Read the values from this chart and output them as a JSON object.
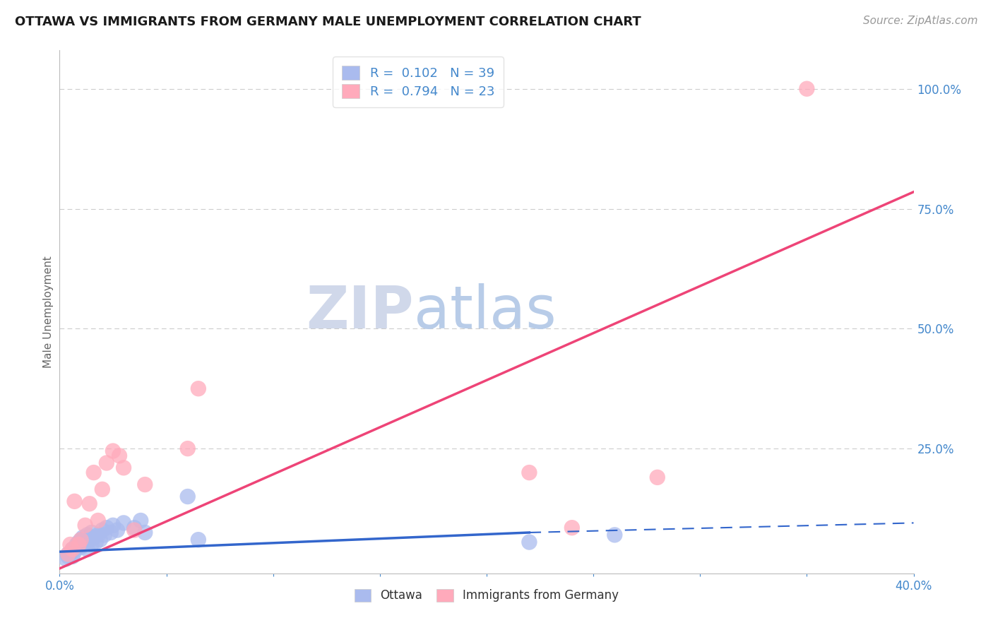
{
  "title": "OTTAWA VS IMMIGRANTS FROM GERMANY MALE UNEMPLOYMENT CORRELATION CHART",
  "source": "Source: ZipAtlas.com",
  "ylabel": "Male Unemployment",
  "xlim": [
    0.0,
    0.4
  ],
  "ylim": [
    -0.01,
    1.08
  ],
  "xticks": [
    0.0,
    0.05,
    0.1,
    0.15,
    0.2,
    0.25,
    0.3,
    0.35,
    0.4
  ],
  "ytick_positions": [
    0.25,
    0.5,
    0.75,
    1.0
  ],
  "ytick_labels": [
    "25.0%",
    "50.0%",
    "75.0%",
    "100.0%"
  ],
  "xtick_labels": [
    "0.0%",
    "",
    "",
    "",
    "",
    "",
    "",
    "",
    "40.0%"
  ],
  "grid_yticks": [
    0.25,
    0.5,
    0.75,
    1.0
  ],
  "ottawa_color": "#aabbee",
  "immigrants_color": "#ffaabb",
  "trendline_ottawa_color": "#3366cc",
  "trendline_immigrants_color": "#ee4477",
  "legend_R_ottawa": "R =  0.102",
  "legend_N_ottawa": "N = 39",
  "legend_R_immigrants": "R =  0.794",
  "legend_N_immigrants": "N = 23",
  "background_color": "#ffffff",
  "title_fontsize": 13,
  "axis_label_color": "#4488cc",
  "ottawa_scatter_x": [
    0.003,
    0.004,
    0.005,
    0.006,
    0.007,
    0.007,
    0.008,
    0.008,
    0.009,
    0.01,
    0.01,
    0.011,
    0.011,
    0.012,
    0.013,
    0.013,
    0.014,
    0.015,
    0.015,
    0.016,
    0.017,
    0.018,
    0.019,
    0.02,
    0.021,
    0.022,
    0.024,
    0.025,
    0.027,
    0.03,
    0.035,
    0.038,
    0.04,
    0.06,
    0.065,
    0.22,
    0.26,
    0.004,
    0.006
  ],
  "ottawa_scatter_y": [
    0.02,
    0.025,
    0.03,
    0.025,
    0.04,
    0.035,
    0.045,
    0.05,
    0.055,
    0.045,
    0.06,
    0.05,
    0.065,
    0.055,
    0.04,
    0.07,
    0.06,
    0.05,
    0.075,
    0.065,
    0.055,
    0.07,
    0.06,
    0.08,
    0.07,
    0.085,
    0.075,
    0.09,
    0.08,
    0.095,
    0.085,
    0.1,
    0.075,
    0.15,
    0.06,
    0.055,
    0.07,
    0.03,
    0.04
  ],
  "immigrants_scatter_x": [
    0.004,
    0.006,
    0.007,
    0.009,
    0.01,
    0.012,
    0.014,
    0.016,
    0.018,
    0.02,
    0.022,
    0.025,
    0.028,
    0.03,
    0.035,
    0.04,
    0.06,
    0.065,
    0.22,
    0.24,
    0.28,
    0.005,
    0.35
  ],
  "immigrants_scatter_y": [
    0.03,
    0.04,
    0.14,
    0.05,
    0.06,
    0.09,
    0.135,
    0.2,
    0.1,
    0.165,
    0.22,
    0.245,
    0.235,
    0.21,
    0.08,
    0.175,
    0.25,
    0.375,
    0.2,
    0.085,
    0.19,
    0.05,
    1.0
  ],
  "trendline_immigrants_x0": 0.0,
  "trendline_immigrants_y0": 0.0,
  "trendline_immigrants_x1": 0.4,
  "trendline_immigrants_y1": 0.785,
  "trendline_ottawa_solid_x0": 0.0,
  "trendline_ottawa_solid_y0": 0.035,
  "trendline_ottawa_solid_x1": 0.22,
  "trendline_ottawa_solid_y1": 0.075,
  "trendline_ottawa_dash_x0": 0.22,
  "trendline_ottawa_dash_y0": 0.075,
  "trendline_ottawa_dash_x1": 0.4,
  "trendline_ottawa_dash_y1": 0.095,
  "watermark_ZIP": "ZIP",
  "watermark_atlas": "atlas",
  "watermark_color_ZIP": "#d0d8ea",
  "watermark_color_atlas": "#b8cce8",
  "watermark_fontsize": 60
}
